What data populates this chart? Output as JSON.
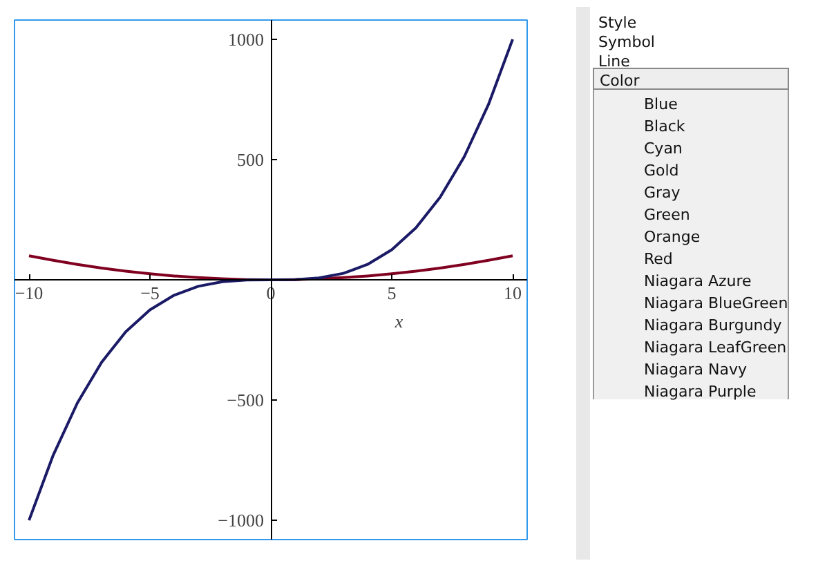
{
  "chart_data": {
    "type": "line",
    "xlabel": "x",
    "x": [
      -10,
      -9,
      -8,
      -7,
      -6,
      -5,
      -4,
      -3,
      -2,
      -1,
      0,
      1,
      2,
      3,
      4,
      5,
      6,
      7,
      8,
      9,
      10
    ],
    "series": [
      {
        "color": "#800020",
        "values": [
          100,
          81,
          64,
          49,
          36,
          25,
          16,
          9,
          4,
          1,
          0,
          1,
          4,
          9,
          16,
          25,
          36,
          49,
          64,
          81,
          100
        ]
      },
      {
        "color": "#1a1a66",
        "values": [
          -1000,
          -729,
          -512,
          -343,
          -216,
          -125,
          -64,
          -27,
          -8,
          -1,
          0,
          1,
          8,
          27,
          64,
          125,
          216,
          343,
          512,
          729,
          1000
        ]
      }
    ],
    "xlim": [
      -10.6,
      10.6
    ],
    "ylim": [
      -1080,
      1080
    ],
    "xticks": [
      {
        "value": -10,
        "label": "−10"
      },
      {
        "value": -5,
        "label": "−5"
      },
      0,
      5,
      10
    ],
    "yticks": [
      {
        "value": -1000,
        "label": "−1000"
      },
      {
        "value": -500,
        "label": "−500"
      },
      500,
      1000
    ],
    "grid": false,
    "marker": "none",
    "line_style": "solid",
    "annotations": [
      "Style",
      "Symbol",
      "Line",
      "Color",
      "Blue",
      "Black",
      "Cyan",
      "Gold",
      "Gray",
      "Green",
      "Orange",
      "Red",
      "Niagara Azure",
      "Niagara BlueGreen",
      "Niagara Burgundy",
      "Niagara LeafGreen",
      "Niagara Navy",
      "Niagara Purple"
    ]
  }
}
